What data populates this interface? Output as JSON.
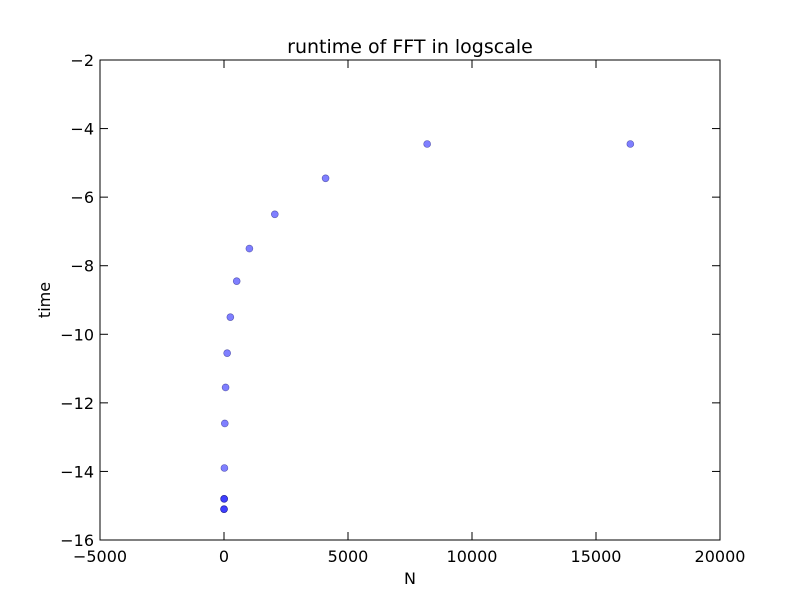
{
  "chart_data": {
    "type": "scatter",
    "title": "runtime of FFT in logscale",
    "xlabel": "N",
    "ylabel": "time",
    "xlim": [
      -5000,
      20000
    ],
    "ylim": [
      -16,
      -2
    ],
    "xticks": [
      -5000,
      0,
      5000,
      10000,
      15000,
      20000
    ],
    "xtick_labels": [
      "−5000",
      "0",
      "5000",
      "10000",
      "15000",
      "20000"
    ],
    "yticks": [
      -16,
      -14,
      -12,
      -10,
      -8,
      -6,
      -4,
      -2
    ],
    "ytick_labels": [
      "−16",
      "−14",
      "−12",
      "−10",
      "−8",
      "−6",
      "−4",
      "−2"
    ],
    "grid": false,
    "legend": "none",
    "marker_color": "#0000ff",
    "marker_opacity": 0.5,
    "series": [
      {
        "x": [
          1,
          2,
          4,
          8,
          16,
          32,
          64,
          128,
          256,
          512,
          1024,
          2048,
          4096,
          8192,
          16384
        ],
        "y": [
          -15.1,
          -15.1,
          -14.8,
          -14.8,
          -13.9,
          -12.6,
          -11.55,
          -10.55,
          -9.5,
          -8.45,
          -7.5,
          -6.5,
          -5.45,
          -4.45,
          -4.45
        ]
      }
    ]
  }
}
